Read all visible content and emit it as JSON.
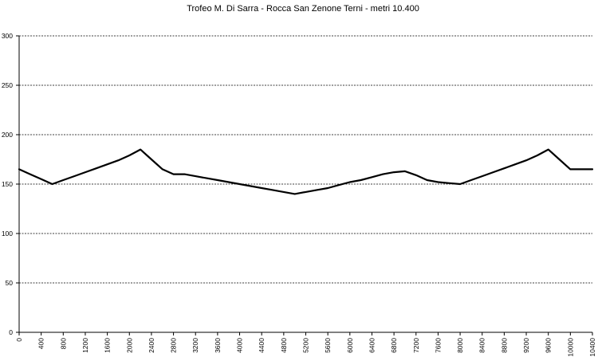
{
  "chart_data": {
    "type": "line",
    "title": "Trofeo M. Di Sarra - Rocca San Zenone  Terni - metri 10.400",
    "xlabel": "",
    "ylabel": "",
    "xlim": [
      0,
      10400
    ],
    "ylim": [
      0,
      300
    ],
    "yticks": [
      0,
      50,
      100,
      150,
      200,
      250,
      300
    ],
    "xticks": [
      0,
      400,
      800,
      1200,
      1600,
      2000,
      2400,
      2800,
      3200,
      3600,
      4000,
      4400,
      4800,
      5200,
      5600,
      6000,
      6400,
      6800,
      7200,
      7600,
      8000,
      8400,
      8800,
      9200,
      9600,
      10000,
      10400
    ],
    "grid": "horizontal",
    "legend": "none",
    "line_color": "#000000",
    "x": [
      0,
      200,
      400,
      600,
      800,
      1000,
      1200,
      1400,
      1600,
      1800,
      2000,
      2200,
      2400,
      2600,
      2800,
      3000,
      3200,
      3400,
      3600,
      3800,
      4000,
      4200,
      4400,
      4600,
      4800,
      5000,
      5200,
      5400,
      5600,
      5800,
      6000,
      6200,
      6400,
      6600,
      6800,
      7000,
      7200,
      7400,
      7600,
      7800,
      8000,
      8200,
      8400,
      8600,
      8800,
      9000,
      9200,
      9400,
      9600,
      9800,
      10000,
      10200,
      10400
    ],
    "values": [
      165,
      160,
      155,
      150,
      154,
      158,
      162,
      166,
      170,
      174,
      179,
      185,
      175,
      165,
      160,
      160,
      158,
      156,
      154,
      152,
      150,
      148,
      146,
      144,
      142,
      140,
      142,
      144,
      146,
      149,
      152,
      154,
      157,
      160,
      162,
      163,
      159,
      154,
      152,
      151,
      150,
      154,
      158,
      162,
      166,
      170,
      174,
      179,
      185,
      175,
      165,
      165,
      165
    ]
  }
}
